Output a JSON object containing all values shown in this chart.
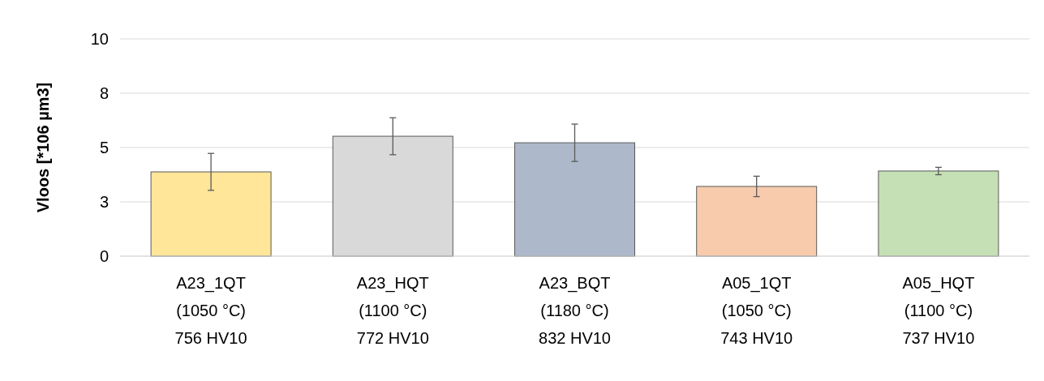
{
  "chart_data": {
    "type": "bar",
    "ylabel": "Vloos [*106 µm3]",
    "categories": [
      "A23_1QT\n(1050 °C)\n756 HV10",
      "A23_HQT\n(1100 °C)\n772 HV10",
      "A23_BQT\n(1180 °C)\n832 HV10",
      "A05_1QT\n(1050 °C)\n743 HV10",
      "A05_HQT\n(1100 °C)\n737 HV10"
    ],
    "values": [
      3.88,
      5.52,
      5.22,
      3.21,
      3.92
    ],
    "errors": [
      0.85,
      0.85,
      0.86,
      0.47,
      0.17
    ],
    "colors": [
      "#ffe699",
      "#d9d9d9",
      "#adb9ca",
      "#f8cbad",
      "#c5e0b4"
    ],
    "ylim": [
      0,
      10
    ],
    "yticks": [
      0,
      {
        "value": 2.5,
        "label": "3"
      },
      5,
      {
        "value": 7.5,
        "label": "8"
      },
      10
    ],
    "grid": "y"
  }
}
